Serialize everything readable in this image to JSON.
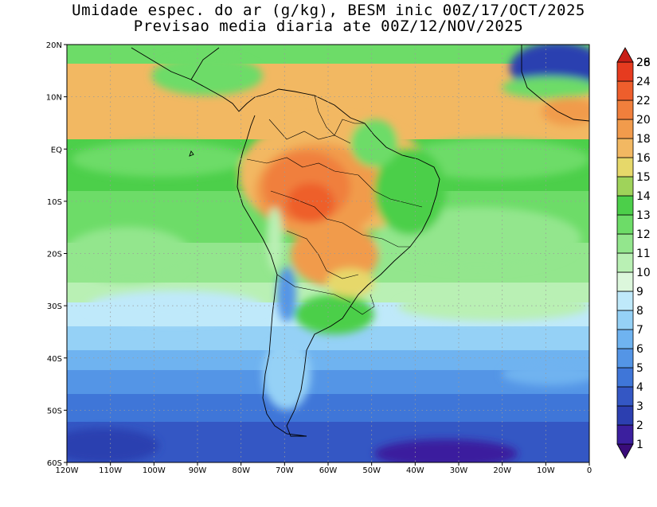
{
  "title_line1": "Umidade espec. do ar (g/kg), BESM inic 00Z/17/OCT/2025",
  "title_line2": "Previsao media diaria ate 00Z/12/NOV/2025",
  "map": {
    "lon_range": [
      -120,
      0
    ],
    "lat_range": [
      -60,
      20
    ],
    "lat_ticks": [
      {
        "value": 20,
        "label": "20N"
      },
      {
        "value": 10,
        "label": "10N"
      },
      {
        "value": 0,
        "label": "EQ"
      },
      {
        "value": -10,
        "label": "10S"
      },
      {
        "value": -20,
        "label": "20S"
      },
      {
        "value": -30,
        "label": "30S"
      },
      {
        "value": -40,
        "label": "40S"
      },
      {
        "value": -50,
        "label": "50S"
      },
      {
        "value": -60,
        "label": "60S"
      }
    ],
    "lon_ticks": [
      {
        "value": -120,
        "label": "120W"
      },
      {
        "value": -110,
        "label": "110W"
      },
      {
        "value": -100,
        "label": "100W"
      },
      {
        "value": -90,
        "label": "90W"
      },
      {
        "value": -80,
        "label": "80W"
      },
      {
        "value": -70,
        "label": "70W"
      },
      {
        "value": -60,
        "label": "60W"
      },
      {
        "value": -50,
        "label": "50W"
      },
      {
        "value": -40,
        "label": "40W"
      },
      {
        "value": -30,
        "label": "30W"
      },
      {
        "value": -20,
        "label": "20W"
      },
      {
        "value": -10,
        "label": "10W"
      },
      {
        "value": 0,
        "label": "0"
      }
    ],
    "gridlines": true
  },
  "colorbar": {
    "levels": [
      {
        "label": "1",
        "color": "#3a0c7a"
      },
      {
        "label": "2",
        "color": "#3b1f9e"
      },
      {
        "label": "3",
        "color": "#2c3fb0"
      },
      {
        "label": "4",
        "color": "#3457c4"
      },
      {
        "label": "5",
        "color": "#3f76d8"
      },
      {
        "label": "6",
        "color": "#5495e6"
      },
      {
        "label": "7",
        "color": "#6fb3f0"
      },
      {
        "label": "8",
        "color": "#95d1f6"
      },
      {
        "label": "9",
        "color": "#bfe9fa"
      },
      {
        "label": "10",
        "color": "#dcf7dc"
      },
      {
        "label": "11",
        "color": "#b9f0b4"
      },
      {
        "label": "12",
        "color": "#93e68d"
      },
      {
        "label": "13",
        "color": "#6ddc68"
      },
      {
        "label": "14",
        "color": "#4ccf4a"
      },
      {
        "label": "15",
        "color": "#9fd35a"
      },
      {
        "label": "16",
        "color": "#e6d86a"
      },
      {
        "label": "18",
        "color": "#f2b862"
      },
      {
        "label": "20",
        "color": "#f19b4c"
      },
      {
        "label": "22",
        "color": "#f07f3c"
      },
      {
        "label": "24",
        "color": "#ee5e2c"
      },
      {
        "label": "26",
        "color": "#e63b1f"
      },
      {
        "label": "28",
        "color": "#c81e16"
      }
    ]
  }
}
